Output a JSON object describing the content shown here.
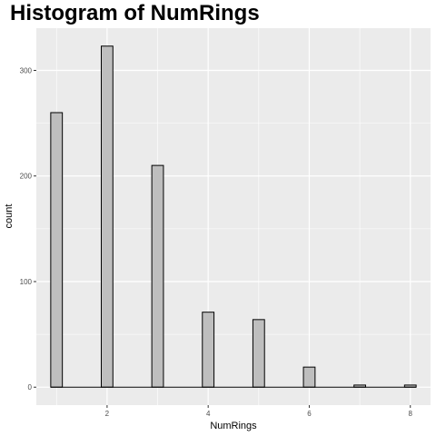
{
  "chart_data": {
    "type": "bar",
    "title": "Histogram of NumRings",
    "xlabel": "NumRings",
    "ylabel": "count",
    "x": [
      1,
      2,
      3,
      4,
      5,
      6,
      7,
      8
    ],
    "values": [
      260,
      323,
      210,
      71,
      64,
      19,
      2,
      2
    ],
    "xlim": [
      0.6,
      8.4
    ],
    "ylim": [
      -17,
      340
    ],
    "x_ticks": [
      "2",
      "4",
      "6",
      "8"
    ],
    "y_ticks": [
      "0",
      "100",
      "200",
      "300"
    ],
    "grid": true,
    "colors": {
      "panel": "#ebebeb",
      "grid": "#ffffff",
      "bar_fill": "#bebebe",
      "bar_stroke": "#000000"
    }
  }
}
